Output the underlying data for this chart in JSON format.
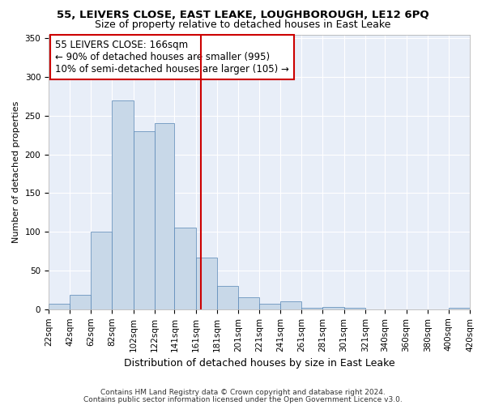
{
  "title": "55, LEIVERS CLOSE, EAST LEAKE, LOUGHBOROUGH, LE12 6PQ",
  "subtitle": "Size of property relative to detached houses in East Leake",
  "xlabel": "Distribution of detached houses by size in East Leake",
  "ylabel": "Number of detached properties",
  "bar_color": "#c8d8e8",
  "bar_edge_color": "#5585b5",
  "background_color": "#e8eef8",
  "grid_color": "#ffffff",
  "vline_x": 166,
  "vline_color": "#cc0000",
  "annotation_line1": "55 LEIVERS CLOSE: 166sqm",
  "annotation_line2": "← 90% of detached houses are smaller (995)",
  "annotation_line3": "10% of semi-detached houses are larger (105) →",
  "annotation_box_color": "#cc0000",
  "bin_edges": [
    22,
    42,
    62,
    82,
    102,
    122,
    141,
    161,
    181,
    201,
    221,
    241,
    261,
    281,
    301,
    321,
    340,
    360,
    380,
    400,
    420
  ],
  "bar_heights": [
    7,
    19,
    100,
    270,
    230,
    240,
    106,
    67,
    30,
    15,
    7,
    10,
    2,
    3,
    2,
    0,
    0,
    0,
    0,
    2
  ],
  "ylim": [
    0,
    355
  ],
  "yticks": [
    0,
    50,
    100,
    150,
    200,
    250,
    300,
    350
  ],
  "footer_line1": "Contains HM Land Registry data © Crown copyright and database right 2024.",
  "footer_line2": "Contains public sector information licensed under the Open Government Licence v3.0.",
  "title_fontsize": 9.5,
  "subtitle_fontsize": 9,
  "xlabel_fontsize": 9,
  "ylabel_fontsize": 8,
  "tick_fontsize": 7.5,
  "annotation_fontsize": 8.5,
  "footer_fontsize": 6.5
}
